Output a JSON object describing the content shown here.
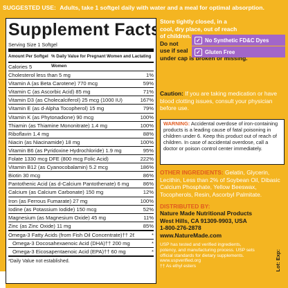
{
  "top_bar": {
    "label": "SUGGESTED USE:",
    "text": "Adults, take 1 softgel daily with water and a meal for optimal absorption."
  },
  "facts": {
    "title": "Supplement Facts",
    "serving": "Serving Size 1 Softgel",
    "header_amount": "Amount Per Softgel",
    "header_dv": "% Daily Value for Pregnant Women and Lactating Women",
    "rows": [
      {
        "name": "Calories  5",
        "dv": ""
      },
      {
        "name": "Cholesterol  less than 5 mg",
        "dv": "1%"
      },
      {
        "name": "Vitamin A (as Beta Carotene)  770 mcg",
        "dv": "59%"
      },
      {
        "name": "Vitamin C (as Ascorbic Acid)  85 mg",
        "dv": "71%"
      },
      {
        "name": "Vitamin D3 (as Cholecalciferol)  25 mcg (1000 IU)",
        "dv": "167%"
      },
      {
        "name": "Vitamin E (as d-Alpha Tocopherol)  15 mg",
        "dv": "79%"
      },
      {
        "name": "Vitamin K (as Phytonadione)  90 mcg",
        "dv": "100%"
      },
      {
        "name": "Thiamin (as Thiamine Mononitrate)  1.4 mg",
        "dv": "100%"
      },
      {
        "name": "Riboflavin  1.4 mg",
        "dv": "88%"
      },
      {
        "name": "Niacin (as Niacinamide)  18 mg",
        "dv": "100%"
      },
      {
        "name": "Vitamin B6 (as Pyridoxine Hydrochloride)  1.9 mg",
        "dv": "95%"
      },
      {
        "name": "Folate  1330 mcg DFE (800 mcg Folic Acid)",
        "dv": "222%"
      },
      {
        "name": "Vitamin B12 (as Cyanocobalamin)  5.2 mcg",
        "dv": "186%"
      },
      {
        "name": "Biotin  30 mcg",
        "dv": "86%"
      },
      {
        "name": "Pantothenic Acid (as d-Calcium Pantothenate)  6 mg",
        "dv": "86%"
      },
      {
        "name": "Calcium (as Calcium Carbonate)  150 mg",
        "dv": "12%"
      },
      {
        "name": "Iron (as Ferrous Fumarate)  27 mg",
        "dv": "100%"
      },
      {
        "name": "Iodine (as Potassium Iodide)  150 mcg",
        "dv": "52%"
      },
      {
        "name": "Magnesium (as Magnesium Oxide)  45 mg",
        "dv": "11%"
      },
      {
        "name": "Zinc (as Zinc Oxide)  11 mg",
        "dv": "85%"
      }
    ],
    "omega_rows": [
      {
        "name": "Omega-3 Fatty Acids (from Fish Oil Concentrate)††  260 mg",
        "dv": "*"
      },
      {
        "name": "Omega-3 Docosahexaenoic Acid (DHA)††  200 mg",
        "dv": "*"
      },
      {
        "name": "Omega-3 Eicosapentaenoic Acid (EPA)††  60 mg",
        "dv": "*"
      }
    ],
    "footnote": "*Daily Value not established."
  },
  "storage": {
    "text": "Store tightly closed, in a cool, dry place, out of reach of children.",
    "warn1": "Do not",
    "warn2": "use if seal",
    "warn3": "under cap is broken or missing."
  },
  "badges": [
    "No Synthetic FD&C Dyes",
    "Gluten Free"
  ],
  "medication": {
    "caution": "Caution:",
    "text": "If you are taking medication or have blood clotting issues, consult your physician before use."
  },
  "warning": {
    "label": "WARNING:",
    "text": "Accidental overdose of iron-containing products is a leading cause of fatal poisoning in children under 6. Keep this product out of reach of children. In case of accidental overdose, call a doctor or poison control center immediately."
  },
  "ingredients": {
    "label": "OTHER INGREDIENTS:",
    "text": "Gelatin, Glycerin, Lecithin, Less than 2% of Soybean Oil, Dibasic Calcium Phosphate, Yellow Beeswax, Tocopherols, Resin, Ascorbyl Palmitate."
  },
  "distributor": {
    "label": "DISTRIBUTED BY:",
    "name": "Nature Made Nutritional Products",
    "address": "West Hills, CA 91309-9903, USA",
    "phone": "1-800-276-2878",
    "website": "www.NatureMade.com"
  },
  "usp": {
    "text": "USP has tested and verified ingredients, potency, and manufacturing process. USP sets official standards for dietary supplements. www.uspverified.org",
    "note": "†† As ethyl esters"
  },
  "lot_exp": "Lot: Exp:"
}
